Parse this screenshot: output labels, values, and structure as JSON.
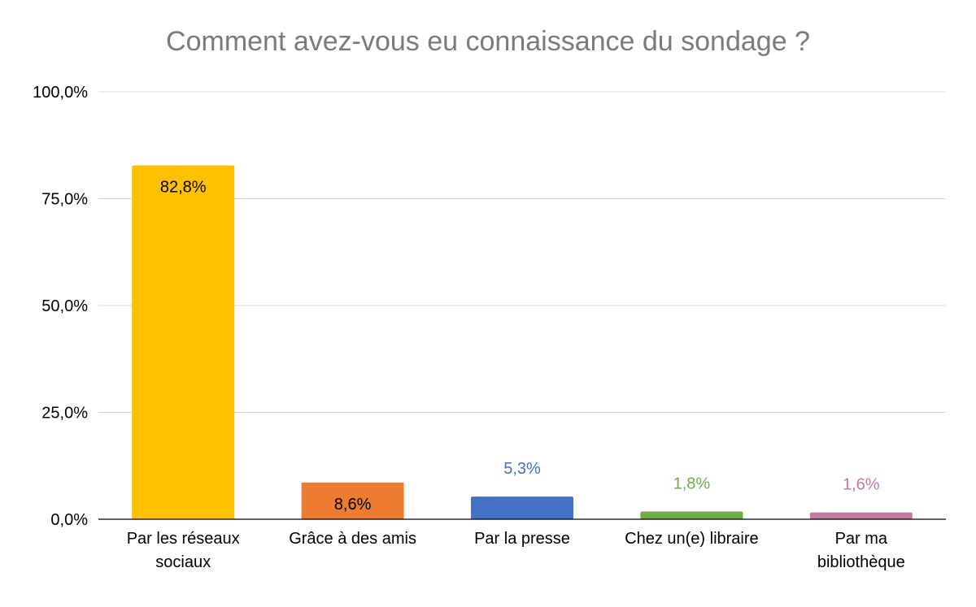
{
  "chart_data": {
    "type": "bar",
    "title": "Comment avez-vous eu connaissance du sondage ?",
    "xlabel": "",
    "ylabel": "",
    "ylim": [
      0,
      100
    ],
    "yticks": [
      "0,0%",
      "25,0%",
      "50,0%",
      "75,0%",
      "100,0%"
    ],
    "ytick_values": [
      0,
      25,
      50,
      75,
      100
    ],
    "grid": true,
    "legend": "none",
    "categories": [
      [
        "Par les réseaux",
        "sociaux"
      ],
      [
        "Grâce à des amis"
      ],
      [
        "Par la presse"
      ],
      [
        "Chez un(e) libraire"
      ],
      [
        "Par ma",
        "bibliothèque"
      ]
    ],
    "values": [
      82.8,
      8.6,
      5.3,
      1.8,
      1.6
    ],
    "data_labels": [
      "82,8%",
      "8,6%",
      "5,3%",
      "1,8%",
      "1,6%"
    ],
    "colors": [
      "#FFC000",
      "#ED7D31",
      "#4472C4",
      "#70AD47",
      "#C27BA0"
    ],
    "label_colors": [
      "#000000",
      "#000000",
      "#4472C4",
      "#70AD47",
      "#C27BA0"
    ],
    "label_inside": [
      true,
      true,
      false,
      false,
      false
    ]
  }
}
